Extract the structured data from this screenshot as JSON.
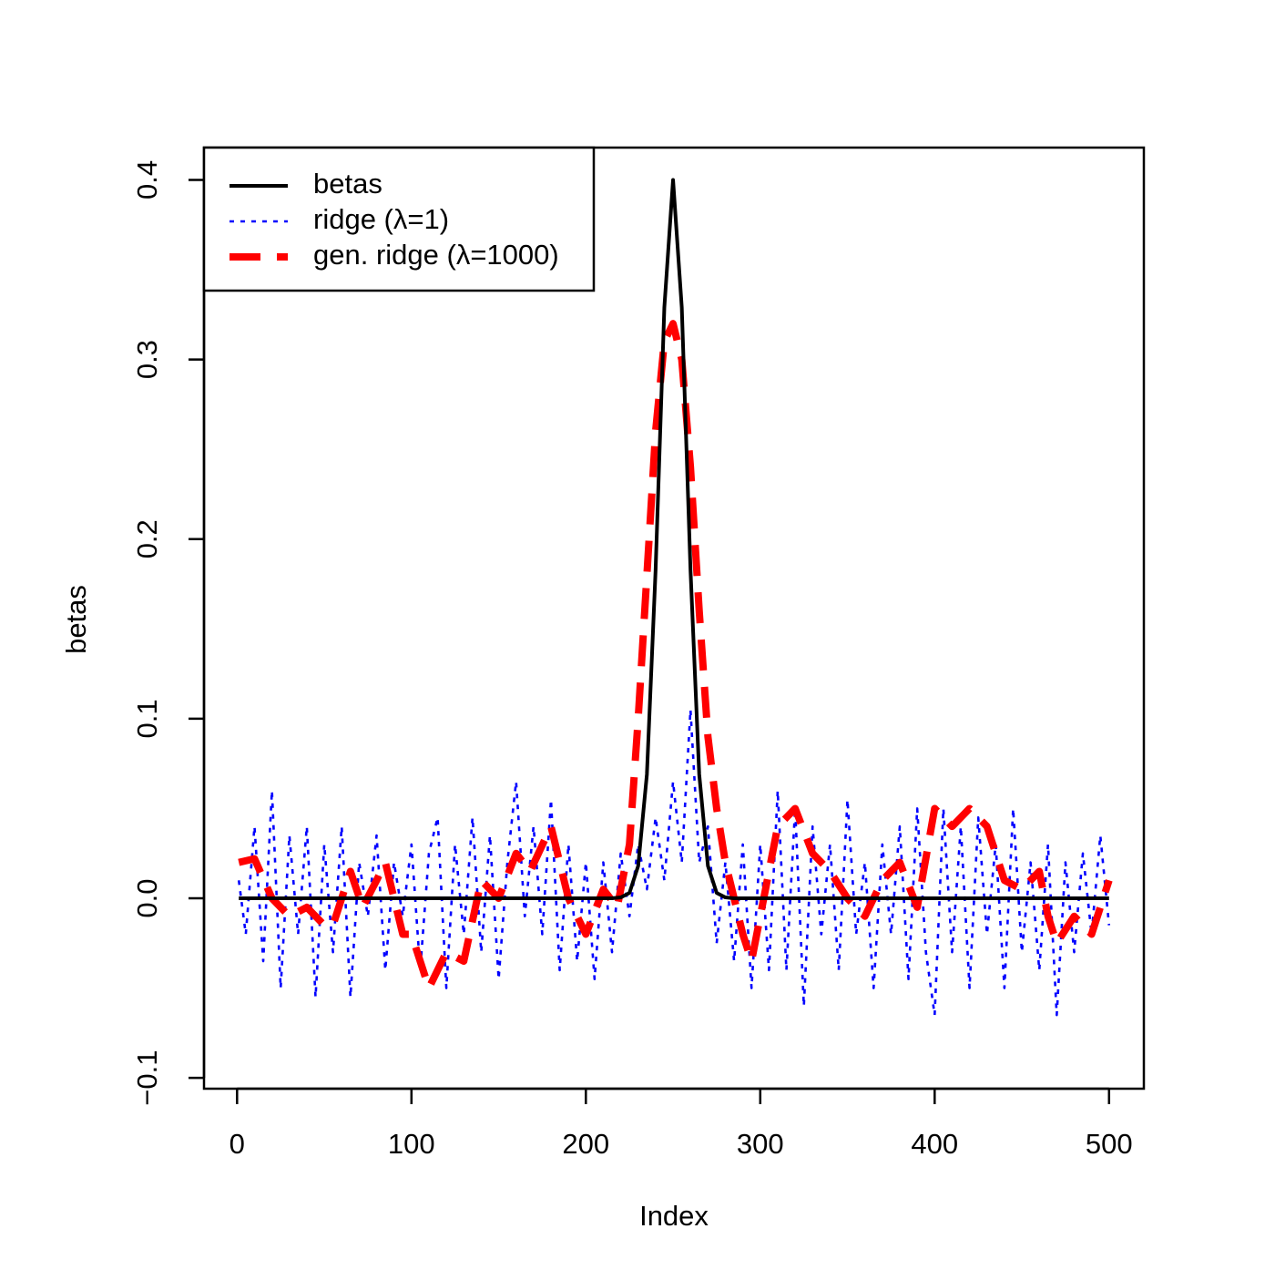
{
  "chart_data": {
    "type": "line",
    "x_label": "Index",
    "y_label": "betas",
    "xlim": [
      -18.96,
      519.96
    ],
    "ylim": [
      -0.106,
      0.418
    ],
    "xticks": [
      0,
      100,
      200,
      300,
      400,
      500
    ],
    "yticks": [
      {
        "value": -0.1,
        "label": "−0.1"
      },
      {
        "value": 0,
        "label": "0.0"
      },
      0.1,
      0.2,
      0.3,
      0.4
    ],
    "grid": false,
    "legend": "topleft",
    "series": [
      {
        "name": "betas",
        "color": "#000000",
        "linestyle": "solid",
        "x": [
          1,
          215,
          220,
          225,
          230,
          235,
          240,
          245,
          250,
          255,
          260,
          265,
          270,
          275,
          280,
          285,
          500
        ],
        "values": [
          0,
          0,
          0.0005,
          0.003,
          0.018,
          0.069,
          0.183,
          0.329,
          0.4,
          0.329,
          0.183,
          0.069,
          0.018,
          0.003,
          0.0005,
          0,
          0
        ]
      },
      {
        "name": "ridge (λ=1)",
        "color": "#0000ff",
        "linestyle": "dotted",
        "x": [
          1,
          5,
          10,
          15,
          20,
          25,
          30,
          35,
          40,
          45,
          50,
          55,
          60,
          65,
          70,
          75,
          80,
          85,
          90,
          95,
          100,
          105,
          110,
          115,
          120,
          125,
          130,
          135,
          140,
          145,
          150,
          155,
          160,
          165,
          170,
          175,
          180,
          185,
          190,
          195,
          200,
          205,
          210,
          215,
          220,
          225,
          230,
          235,
          240,
          245,
          250,
          255,
          260,
          265,
          270,
          275,
          280,
          285,
          290,
          295,
          300,
          305,
          310,
          315,
          320,
          325,
          330,
          335,
          340,
          345,
          350,
          355,
          360,
          365,
          370,
          375,
          380,
          385,
          390,
          395,
          400,
          405,
          410,
          415,
          420,
          425,
          430,
          435,
          440,
          445,
          450,
          455,
          460,
          465,
          470,
          475,
          480,
          485,
          490,
          495,
          500
        ],
        "values": [
          0.01,
          -0.02,
          0.04,
          -0.035,
          0.06,
          -0.05,
          0.035,
          -0.02,
          0.04,
          -0.055,
          0.03,
          -0.03,
          0.04,
          -0.055,
          0.02,
          -0.01,
          0.035,
          -0.04,
          0.02,
          -0.01,
          0.03,
          -0.04,
          0.025,
          0.045,
          -0.05,
          0.03,
          -0.02,
          0.045,
          -0.03,
          0.035,
          -0.045,
          0.02,
          0.065,
          -0.01,
          0.04,
          -0.02,
          0.055,
          -0.04,
          0.03,
          -0.035,
          0.02,
          -0.045,
          0.02,
          -0.03,
          0.025,
          -0.01,
          0.03,
          0.005,
          0.045,
          0.01,
          0.065,
          0.02,
          0.105,
          0.02,
          0.04,
          -0.025,
          0.02,
          -0.035,
          0.03,
          -0.05,
          0.03,
          -0.04,
          0.06,
          -0.04,
          0.05,
          -0.06,
          0.04,
          -0.02,
          0.03,
          -0.04,
          0.055,
          -0.02,
          0.02,
          -0.05,
          0.03,
          -0.02,
          0.04,
          -0.045,
          0.05,
          -0.03,
          -0.065,
          0.05,
          -0.03,
          0.04,
          -0.05,
          0.045,
          -0.02,
          0.03,
          -0.05,
          0.05,
          -0.03,
          0.02,
          -0.04,
          0.03,
          -0.065,
          0.02,
          -0.03,
          0.025,
          -0.02,
          0.035,
          -0.015
        ]
      },
      {
        "name": "gen. ridge (λ=1000)",
        "color": "#ff0000",
        "linestyle": "dashed",
        "x": [
          1,
          10,
          20,
          30,
          40,
          50,
          55,
          65,
          72,
          80,
          85,
          95,
          100,
          110,
          120,
          130,
          140,
          150,
          160,
          168,
          180,
          190,
          200,
          210,
          218,
          225,
          230,
          235,
          240,
          245,
          250,
          255,
          260,
          265,
          270,
          275,
          280,
          290,
          295,
          300,
          310,
          320,
          330,
          340,
          350,
          360,
          370,
          380,
          390,
          400,
          410,
          420,
          430,
          440,
          450,
          460,
          465,
          470,
          480,
          490,
          500
        ],
        "values": [
          0.02,
          0.022,
          0.0,
          -0.01,
          -0.005,
          -0.015,
          -0.015,
          0.015,
          -0.005,
          0.01,
          0.02,
          -0.02,
          -0.02,
          -0.05,
          -0.03,
          -0.035,
          0.01,
          0.0,
          0.025,
          0.015,
          0.04,
          0.0,
          -0.02,
          0.005,
          -0.005,
          0.03,
          0.1,
          0.18,
          0.26,
          0.31,
          0.32,
          0.3,
          0.24,
          0.16,
          0.09,
          0.05,
          0.02,
          -0.02,
          -0.035,
          -0.01,
          0.04,
          0.05,
          0.025,
          0.015,
          0.0,
          -0.01,
          0.01,
          0.02,
          -0.005,
          0.05,
          0.04,
          0.05,
          0.04,
          0.01,
          0.005,
          0.015,
          -0.01,
          -0.025,
          -0.01,
          -0.02,
          0.01
        ]
      }
    ]
  }
}
